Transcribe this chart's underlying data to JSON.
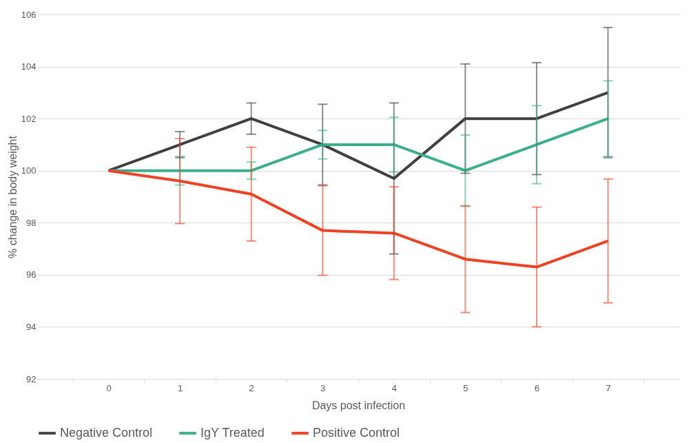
{
  "chart_data": {
    "type": "line",
    "xlabel": "Days post infection",
    "ylabel": "% change in body weight",
    "categories": [
      "0",
      "1",
      "2",
      "3",
      "4",
      "5",
      "6",
      "7"
    ],
    "ylim": [
      92,
      106
    ],
    "yticks": [
      92,
      94,
      96,
      98,
      100,
      102,
      104,
      106
    ],
    "grid": "y",
    "legend": "bottom",
    "marker": "none",
    "line_style": "solid",
    "series": [
      {
        "name": "Negative Control",
        "color": "#404040",
        "values": [
          100,
          101,
          102,
          101,
          99.7,
          102,
          102,
          103
        ],
        "errors": [
          null,
          0.5,
          0.6,
          1.55,
          2.9,
          2.1,
          2.15,
          2.5
        ]
      },
      {
        "name": "IgY Treated",
        "color": "#3aaf8a",
        "values": [
          100,
          100,
          100,
          101,
          101,
          100,
          101,
          102
        ],
        "errors": [
          null,
          0.55,
          0.33,
          0.55,
          1.05,
          1.37,
          1.5,
          1.45
        ]
      },
      {
        "name": "Positive Control",
        "color": "#f04123",
        "values": [
          100,
          99.6,
          99.1,
          97.7,
          97.6,
          96.6,
          96.3,
          97.3
        ],
        "errors": [
          null,
          1.63,
          1.8,
          1.72,
          1.78,
          2.05,
          2.3,
          2.38
        ]
      }
    ]
  }
}
